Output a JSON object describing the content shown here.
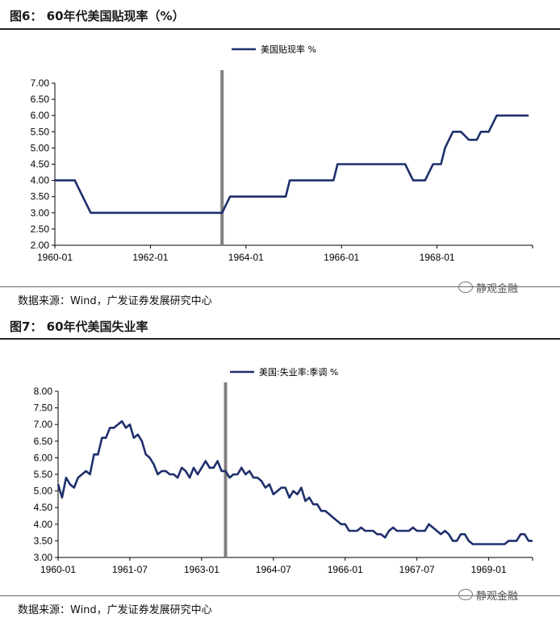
{
  "figures": [
    {
      "title": "图6：  60年代美国贴现率（%）",
      "source": "数据来源：Wind，广发证券发展研究中心",
      "watermark": "静观金融"
    },
    {
      "title": "图7：  60年代美国失业率",
      "source": "数据来源：Wind，广发证券发展研究中心",
      "watermark": "静观金融"
    }
  ],
  "colors": {
    "line": "#1f2f6b",
    "marker": "#808080",
    "axis": "#000000"
  },
  "chart_data": [
    {
      "type": "line",
      "title": "",
      "xlabel": "",
      "ylabel": "",
      "legend": "top-center",
      "grid": false,
      "x_tick_labels": [
        "1960-01",
        "1962-01",
        "1964-01",
        "1966-01",
        "1968-01"
      ],
      "y_tick_labels": [
        "2.00",
        "2.50",
        "3.00",
        "3.50",
        "4.00",
        "4.50",
        "5.00",
        "5.50",
        "6.00",
        "6.50",
        "7.00"
      ],
      "xlim": [
        "1960-01",
        "1970-01"
      ],
      "ylim": [
        2.0,
        7.0
      ],
      "vertical_marker": "1963-07",
      "series": [
        {
          "name": "美国贴现率 %",
          "x": [
            "1960-01",
            "1960-06",
            "1960-07",
            "1960-08",
            "1960-09",
            "1960-10",
            "1961-12",
            "1962-12",
            "1963-07",
            "1963-08",
            "1963-09",
            "1964-11",
            "1964-12",
            "1965-11",
            "1965-12",
            "1966-12",
            "1967-03",
            "1967-05",
            "1967-07",
            "1967-10",
            "1967-11",
            "1967-12",
            "1968-02",
            "1968-03",
            "1968-05",
            "1968-07",
            "1968-09",
            "1968-11",
            "1968-12",
            "1969-02",
            "1969-04",
            "1969-06",
            "1969-07",
            "1969-12"
          ],
          "values": [
            4.0,
            4.0,
            3.75,
            3.5,
            3.25,
            3.0,
            3.0,
            3.0,
            3.0,
            3.25,
            3.5,
            3.5,
            4.0,
            4.0,
            4.5,
            4.5,
            4.5,
            4.5,
            4.0,
            4.0,
            4.25,
            4.5,
            4.5,
            5.0,
            5.5,
            5.5,
            5.25,
            5.25,
            5.5,
            5.5,
            6.0,
            6.0,
            6.0,
            6.0
          ]
        }
      ]
    },
    {
      "type": "line",
      "title": "",
      "xlabel": "",
      "ylabel": "",
      "legend": "top-center",
      "grid": false,
      "x_tick_labels": [
        "1960-01",
        "1961-07",
        "1963-01",
        "1964-07",
        "1966-01",
        "1967-07",
        "1969-01"
      ],
      "y_tick_labels": [
        "3.00",
        "3.50",
        "4.00",
        "4.50",
        "5.00",
        "5.50",
        "6.00",
        "6.50",
        "7.00",
        "7.50",
        "8.00"
      ],
      "xlim": [
        "1960-01",
        "1969-12"
      ],
      "ylim": [
        3.0,
        8.0
      ],
      "vertical_marker": "1963-07",
      "series": [
        {
          "name": "美国:失业率:季调 %",
          "x": [
            "1960-01",
            "1960-02",
            "1960-03",
            "1960-04",
            "1960-05",
            "1960-06",
            "1960-07",
            "1960-08",
            "1960-09",
            "1960-10",
            "1960-11",
            "1960-12",
            "1961-01",
            "1961-02",
            "1961-03",
            "1961-04",
            "1961-05",
            "1961-06",
            "1961-07",
            "1961-08",
            "1961-09",
            "1961-10",
            "1961-11",
            "1961-12",
            "1962-01",
            "1962-02",
            "1962-03",
            "1962-04",
            "1962-05",
            "1962-06",
            "1962-07",
            "1962-08",
            "1962-09",
            "1962-10",
            "1962-11",
            "1962-12",
            "1963-01",
            "1963-02",
            "1963-03",
            "1963-04",
            "1963-05",
            "1963-06",
            "1963-07",
            "1963-08",
            "1963-09",
            "1963-10",
            "1963-11",
            "1963-12",
            "1964-01",
            "1964-02",
            "1964-03",
            "1964-04",
            "1964-05",
            "1964-06",
            "1964-07",
            "1964-08",
            "1964-09",
            "1964-10",
            "1964-11",
            "1964-12",
            "1965-01",
            "1965-02",
            "1965-03",
            "1965-04",
            "1965-05",
            "1965-06",
            "1965-07",
            "1965-08",
            "1965-09",
            "1965-10",
            "1965-11",
            "1965-12",
            "1966-01",
            "1966-02",
            "1966-03",
            "1966-04",
            "1966-05",
            "1966-06",
            "1966-07",
            "1966-08",
            "1966-09",
            "1966-10",
            "1966-11",
            "1966-12",
            "1967-01",
            "1967-02",
            "1967-03",
            "1967-04",
            "1967-05",
            "1967-06",
            "1967-07",
            "1967-08",
            "1967-09",
            "1967-10",
            "1967-11",
            "1967-12",
            "1968-01",
            "1968-02",
            "1968-03",
            "1968-04",
            "1968-05",
            "1968-06",
            "1968-07",
            "1968-08",
            "1968-09",
            "1968-10",
            "1968-11",
            "1968-12",
            "1969-01",
            "1969-02",
            "1969-03",
            "1969-04",
            "1969-05",
            "1969-06",
            "1969-07",
            "1969-08",
            "1969-09",
            "1969-10",
            "1969-11",
            "1969-12"
          ],
          "values": [
            5.2,
            4.8,
            5.4,
            5.2,
            5.1,
            5.4,
            5.5,
            5.6,
            5.5,
            6.1,
            6.1,
            6.6,
            6.6,
            6.9,
            6.9,
            7.0,
            7.1,
            6.9,
            7.0,
            6.6,
            6.7,
            6.5,
            6.1,
            6.0,
            5.8,
            5.5,
            5.6,
            5.6,
            5.5,
            5.5,
            5.4,
            5.7,
            5.6,
            5.4,
            5.7,
            5.5,
            5.7,
            5.9,
            5.7,
            5.7,
            5.9,
            5.6,
            5.6,
            5.4,
            5.5,
            5.5,
            5.7,
            5.5,
            5.6,
            5.4,
            5.4,
            5.3,
            5.1,
            5.2,
            4.9,
            5.0,
            5.1,
            5.1,
            4.8,
            5.0,
            4.9,
            5.1,
            4.7,
            4.8,
            4.6,
            4.6,
            4.4,
            4.4,
            4.3,
            4.2,
            4.1,
            4.0,
            4.0,
            3.8,
            3.8,
            3.8,
            3.9,
            3.8,
            3.8,
            3.8,
            3.7,
            3.7,
            3.6,
            3.8,
            3.9,
            3.8,
            3.8,
            3.8,
            3.8,
            3.9,
            3.8,
            3.8,
            3.8,
            4.0,
            3.9,
            3.8,
            3.7,
            3.8,
            3.7,
            3.5,
            3.5,
            3.7,
            3.7,
            3.5,
            3.4,
            3.4,
            3.4,
            3.4,
            3.4,
            3.4,
            3.4,
            3.4,
            3.4,
            3.5,
            3.5,
            3.5,
            3.7,
            3.7,
            3.5,
            3.5
          ]
        }
      ]
    }
  ]
}
